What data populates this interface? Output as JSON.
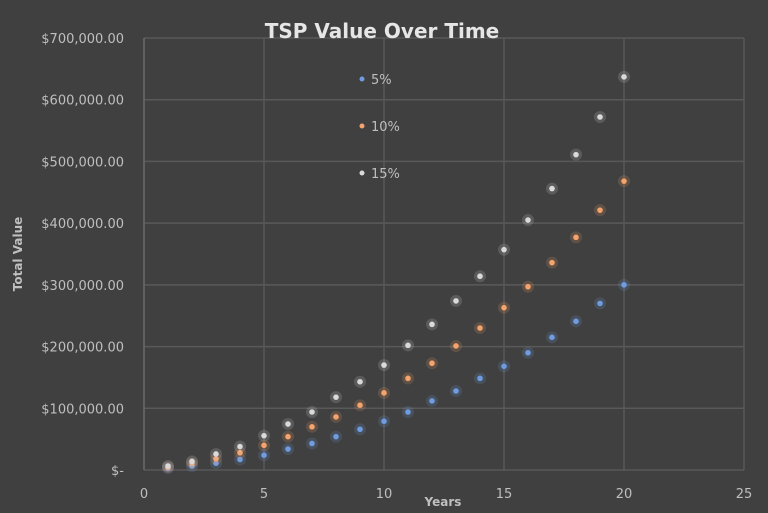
{
  "chart_data": {
    "type": "scatter",
    "title": "TSP Value Over Time",
    "xlabel": "Years",
    "ylabel": "Total Value",
    "xlim": [
      0,
      25
    ],
    "ylim": [
      0,
      700000
    ],
    "x_ticks": [
      "0",
      "5",
      "10",
      "15",
      "20",
      "25"
    ],
    "y_ticks": [
      "$-",
      "$100,000.00",
      "$200,000.00",
      "$300,000.00",
      "$400,000.00",
      "$500,000.00",
      "$600,000.00",
      "$700,000.00"
    ],
    "grid": true,
    "legend_position": "top-center",
    "x": [
      1,
      2,
      3,
      4,
      5,
      6,
      7,
      8,
      9,
      10,
      11,
      12,
      13,
      14,
      15,
      16,
      17,
      18,
      19,
      20
    ],
    "series": [
      {
        "name": "5%",
        "color": "#6f9be0",
        "values": [
          3000,
          6500,
          11000,
          17000,
          24000,
          34000,
          43000,
          54000,
          66000,
          79000,
          94000,
          112000,
          128000,
          148500,
          168000,
          190000,
          215000,
          241000,
          270000,
          300000
        ]
      },
      {
        "name": "10%",
        "color": "#f4a36c",
        "values": [
          4500,
          11000,
          18000,
          28000,
          40000,
          54000,
          70000,
          86000,
          105000,
          125000,
          148500,
          173000,
          201000,
          230000,
          263000,
          297000,
          336000,
          377000,
          421000,
          468000
        ]
      },
      {
        "name": "15%",
        "color": "#d9d9d9",
        "values": [
          6500,
          14000,
          26000,
          38000,
          55600,
          74500,
          94000,
          118000,
          143000,
          170000,
          202000,
          236000,
          274000,
          314000,
          357000,
          405000,
          456000,
          511000,
          572000,
          637000
        ]
      }
    ]
  }
}
